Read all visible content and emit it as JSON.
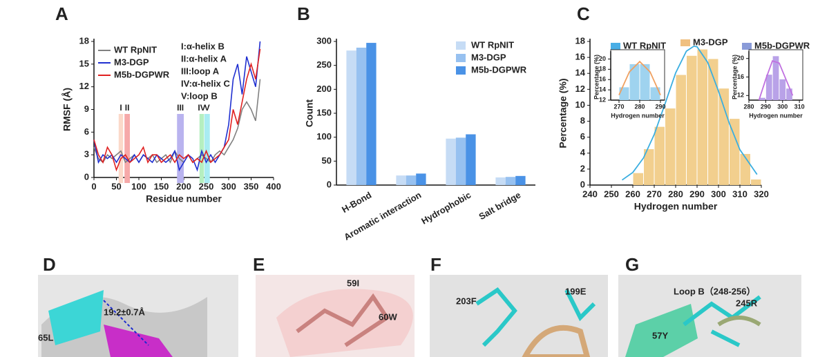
{
  "chart_data": [
    {
      "type": "line",
      "panel": "A",
      "xlabel": "Residue number",
      "ylabel": "RMSF (Å)",
      "xlim": [
        0,
        400
      ],
      "xticks": [
        0,
        50,
        100,
        150,
        200,
        250,
        300,
        350,
        400
      ],
      "ylim": [
        0,
        18
      ],
      "yticks": [
        0,
        3,
        6,
        9,
        12,
        15,
        18
      ],
      "x": [
        0,
        10,
        20,
        30,
        40,
        50,
        60,
        70,
        80,
        90,
        100,
        110,
        120,
        130,
        140,
        150,
        160,
        170,
        180,
        190,
        200,
        210,
        220,
        230,
        240,
        250,
        260,
        270,
        280,
        290,
        300,
        310,
        320,
        330,
        340,
        350,
        360,
        370
      ],
      "series": [
        {
          "name": "WT RpNIT",
          "color": "#808080",
          "values": [
            4,
            2.5,
            2,
            3,
            2.5,
            3,
            3.5,
            2,
            2.5,
            3,
            2,
            3,
            2.5,
            3,
            2,
            2.5,
            3,
            2,
            3.5,
            2.5,
            2,
            3,
            2,
            2.5,
            3,
            2.5,
            2,
            3,
            3.5,
            3,
            4,
            5,
            6.5,
            9,
            10,
            9,
            7.5,
            13
          ]
        },
        {
          "name": "M3-DGP",
          "color": "#1f2fd0",
          "values": [
            5,
            2,
            3,
            2.5,
            3,
            2,
            3,
            2.5,
            2,
            3,
            2,
            3,
            2.5,
            2,
            3,
            2.5,
            2,
            2.5,
            3.5,
            1,
            2,
            3,
            2.5,
            1,
            3.5,
            2,
            3,
            2,
            3,
            4,
            7,
            13,
            15,
            11,
            16,
            14,
            12,
            18
          ]
        },
        {
          "name": "M5b-DGPWR",
          "color": "#e02020",
          "values": [
            5,
            3,
            2,
            4,
            3,
            1,
            2.5,
            3,
            2,
            2.5,
            3,
            4,
            2,
            3,
            3,
            2,
            2.5,
            3,
            2,
            3,
            2.5,
            3,
            2,
            2.5,
            2,
            3.5,
            2,
            2.5,
            3,
            4,
            5,
            9,
            7,
            10,
            13,
            15,
            13,
            17
          ]
        }
      ],
      "regions": [
        {
          "label": "I",
          "x": [
            55,
            65
          ],
          "color": "#fbd9c9"
        },
        {
          "label": "II",
          "x": [
            68,
            80
          ],
          "color": "#f6a9a9"
        },
        {
          "label": "III",
          "x": [
            185,
            200
          ],
          "color": "#b9b3ef"
        },
        {
          "label": "IV",
          "x": [
            235,
            245
          ],
          "color": "#b5efc0"
        },
        {
          "label": "V",
          "x": [
            246,
            258
          ],
          "color": "#a9ecf2"
        }
      ],
      "region_key": [
        "I:α-helix B",
        "II:α-helix A",
        "III:loop A",
        "IV:α-helix C",
        "V:loop B"
      ]
    },
    {
      "type": "bar",
      "panel": "B",
      "ylabel": "Count",
      "categories": [
        "H-Bond",
        "Aromatic interaction",
        "Hydrophobic",
        "Salt bridge"
      ],
      "ylim": [
        0,
        300
      ],
      "yticks": [
        0,
        50,
        100,
        150,
        200,
        250,
        300
      ],
      "series": [
        {
          "name": "WT RpNIT",
          "color": "#c6dcf5",
          "values": [
            281,
            20,
            97,
            16
          ]
        },
        {
          "name": "M3-DGP",
          "color": "#97c1f0",
          "values": [
            287,
            20,
            99,
            17
          ]
        },
        {
          "name": "M5b-DGPWR",
          "color": "#4a92e6",
          "values": [
            297,
            24,
            106,
            19
          ]
        }
      ]
    },
    {
      "type": "histogram",
      "panel": "C",
      "xlabel": "Hydrogen number",
      "ylabel": "Percentage (%)",
      "xlim": [
        240,
        320
      ],
      "xticks": [
        240,
        250,
        260,
        270,
        280,
        290,
        300,
        310,
        320
      ],
      "ylim": [
        0,
        18
      ],
      "yticks": [
        0,
        2,
        4,
        6,
        8,
        10,
        12,
        14,
        16,
        18
      ],
      "bins": [
        260,
        265,
        270,
        275,
        280,
        285,
        290,
        295,
        300,
        305,
        310,
        315,
        320
      ],
      "values": [
        1.5,
        4.5,
        7.3,
        9.6,
        13.8,
        16.2,
        17,
        15.8,
        12.1,
        8.3,
        3.9,
        0.7
      ],
      "color": "#f2cf8e",
      "fit": {
        "color": "#3aaee0",
        "x": [
          255,
          260,
          265,
          270,
          275,
          280,
          285,
          288.5,
          290,
          295,
          300,
          305,
          310,
          318
        ],
        "values": [
          0.63,
          1.58,
          3.41,
          6.34,
          10.15,
          14.05,
          16.78,
          17.4,
          17.33,
          15.35,
          11.77,
          7.78,
          4.43,
          1.33
        ]
      },
      "legend": [
        {
          "name": "WT RpNIT",
          "color": "#49aee6"
        },
        {
          "name": "M3-DGP",
          "color": "#f0c080"
        },
        {
          "name": "M5b-DGPWR",
          "color": "#8a9bd8"
        }
      ]
    },
    {
      "type": "histogram",
      "xlabel": "Hydrogen number",
      "ylabel": "Percentage (%)",
      "xlim": [
        266,
        292
      ],
      "xticks": [
        270,
        280,
        290
      ],
      "ylim": [
        12,
        21
      ],
      "yticks": [
        12,
        14,
        16,
        18,
        20
      ],
      "bins": [
        270,
        275,
        280,
        285,
        290
      ],
      "values": [
        14.5,
        19,
        19,
        14.5
      ],
      "color": "#9fd3ef",
      "fit": {
        "color": "#f0a060",
        "x": [
          270,
          275,
          280,
          285,
          290
        ],
        "values": [
          13,
          17.5,
          19.5,
          17.5,
          13
        ]
      }
    },
    {
      "type": "histogram",
      "xlabel": "Hydrogen number",
      "ylabel": "Percentage (%)",
      "xlim": [
        280,
        312
      ],
      "xticks": [
        280,
        290,
        300,
        310
      ],
      "ylim": [
        11,
        21
      ],
      "yticks": [
        12,
        16,
        20
      ],
      "bins": [
        286,
        290,
        294,
        298,
        302,
        306
      ],
      "values": [
        11.5,
        16.5,
        20.5,
        15.5,
        13.5
      ],
      "color": "#b9a2e8",
      "fit": {
        "color": "#c070e0",
        "x": [
          286,
          290,
          294,
          298,
          302,
          306
        ],
        "values": [
          11,
          15.5,
          19.5,
          19,
          15.5,
          12
        ]
      }
    }
  ],
  "images": [
    {
      "label": "D",
      "annotations": [
        "65L",
        "19.2±0.7Å"
      ]
    },
    {
      "label": "E",
      "annotations": [
        "59I",
        "60W"
      ]
    },
    {
      "label": "F",
      "annotations": [
        "203F",
        "199E"
      ]
    },
    {
      "label": "G",
      "annotations": [
        "Loop B（248-256）",
        "57Y",
        "245R"
      ]
    }
  ]
}
